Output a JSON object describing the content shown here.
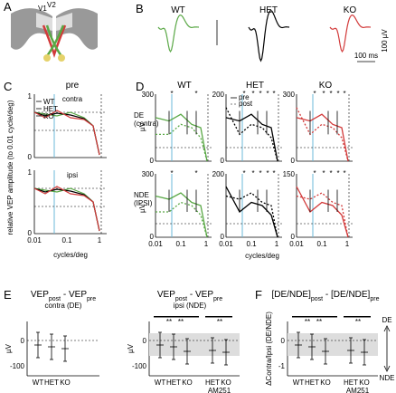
{
  "A": {
    "letter": "A",
    "labels": [
      "V1",
      "V2"
    ]
  },
  "B": {
    "letter": "B",
    "traces": [
      "WT",
      "HET",
      "KO"
    ],
    "scale_v": "100 µV",
    "scale_t": "100 ms"
  },
  "C": {
    "letter": "C",
    "title": "pre",
    "legend": [
      "WT",
      "HET",
      "KO"
    ],
    "rows": [
      "contra",
      "ipsi"
    ],
    "y_label": "relative VEP amplitude (to 0.01 cycle/deg)",
    "x_label": "cycles/deg",
    "x_ticks": [
      "0.01",
      "0.1",
      "1"
    ],
    "y_ticks": [
      "1",
      "0"
    ]
  },
  "D": {
    "letter": "D",
    "columns": [
      "WT",
      "HET",
      "KO"
    ],
    "legend": [
      "pre",
      "post"
    ],
    "rows": [
      [
        "DE",
        "(contra)"
      ],
      [
        "NDE",
        "(IPSI)"
      ]
    ],
    "y_label": "µV",
    "x_label": "cycles/deg",
    "x_ticks": [
      "0.01",
      "0.1",
      "1"
    ],
    "y_ticks_top": [
      "300",
      "200",
      "300"
    ],
    "y_ticks_bottom": [
      "300",
      "200",
      "150"
    ],
    "zero": "0",
    "star": "*"
  },
  "E": {
    "letter": "E",
    "title_parts": [
      "VEP",
      "post",
      " - VEP",
      "pre"
    ],
    "subtitles": [
      "contra (DE)",
      "ipsi (NDE)"
    ],
    "y_label": "µV",
    "y_ticks": [
      "0",
      "-100"
    ],
    "groups": [
      "WT",
      "HET",
      "KO"
    ],
    "drug_groups": [
      "HET",
      "KO"
    ],
    "drug": "AM251",
    "sig": "**"
  },
  "F": {
    "letter": "F",
    "title_parts": [
      "[DE/NDE]",
      "post",
      " - [DE/NDE]",
      "pre"
    ],
    "y_label": "ΔContra/Ipsi (DE/NDE)",
    "y_ticks": [
      "0",
      "-1"
    ],
    "arrow_labels": [
      "DE",
      "NDE"
    ],
    "groups": [
      "WT",
      "HET",
      "KO"
    ],
    "drug_groups": [
      "HET",
      "KO"
    ],
    "drug": "AM251",
    "sig": "**"
  }
}
